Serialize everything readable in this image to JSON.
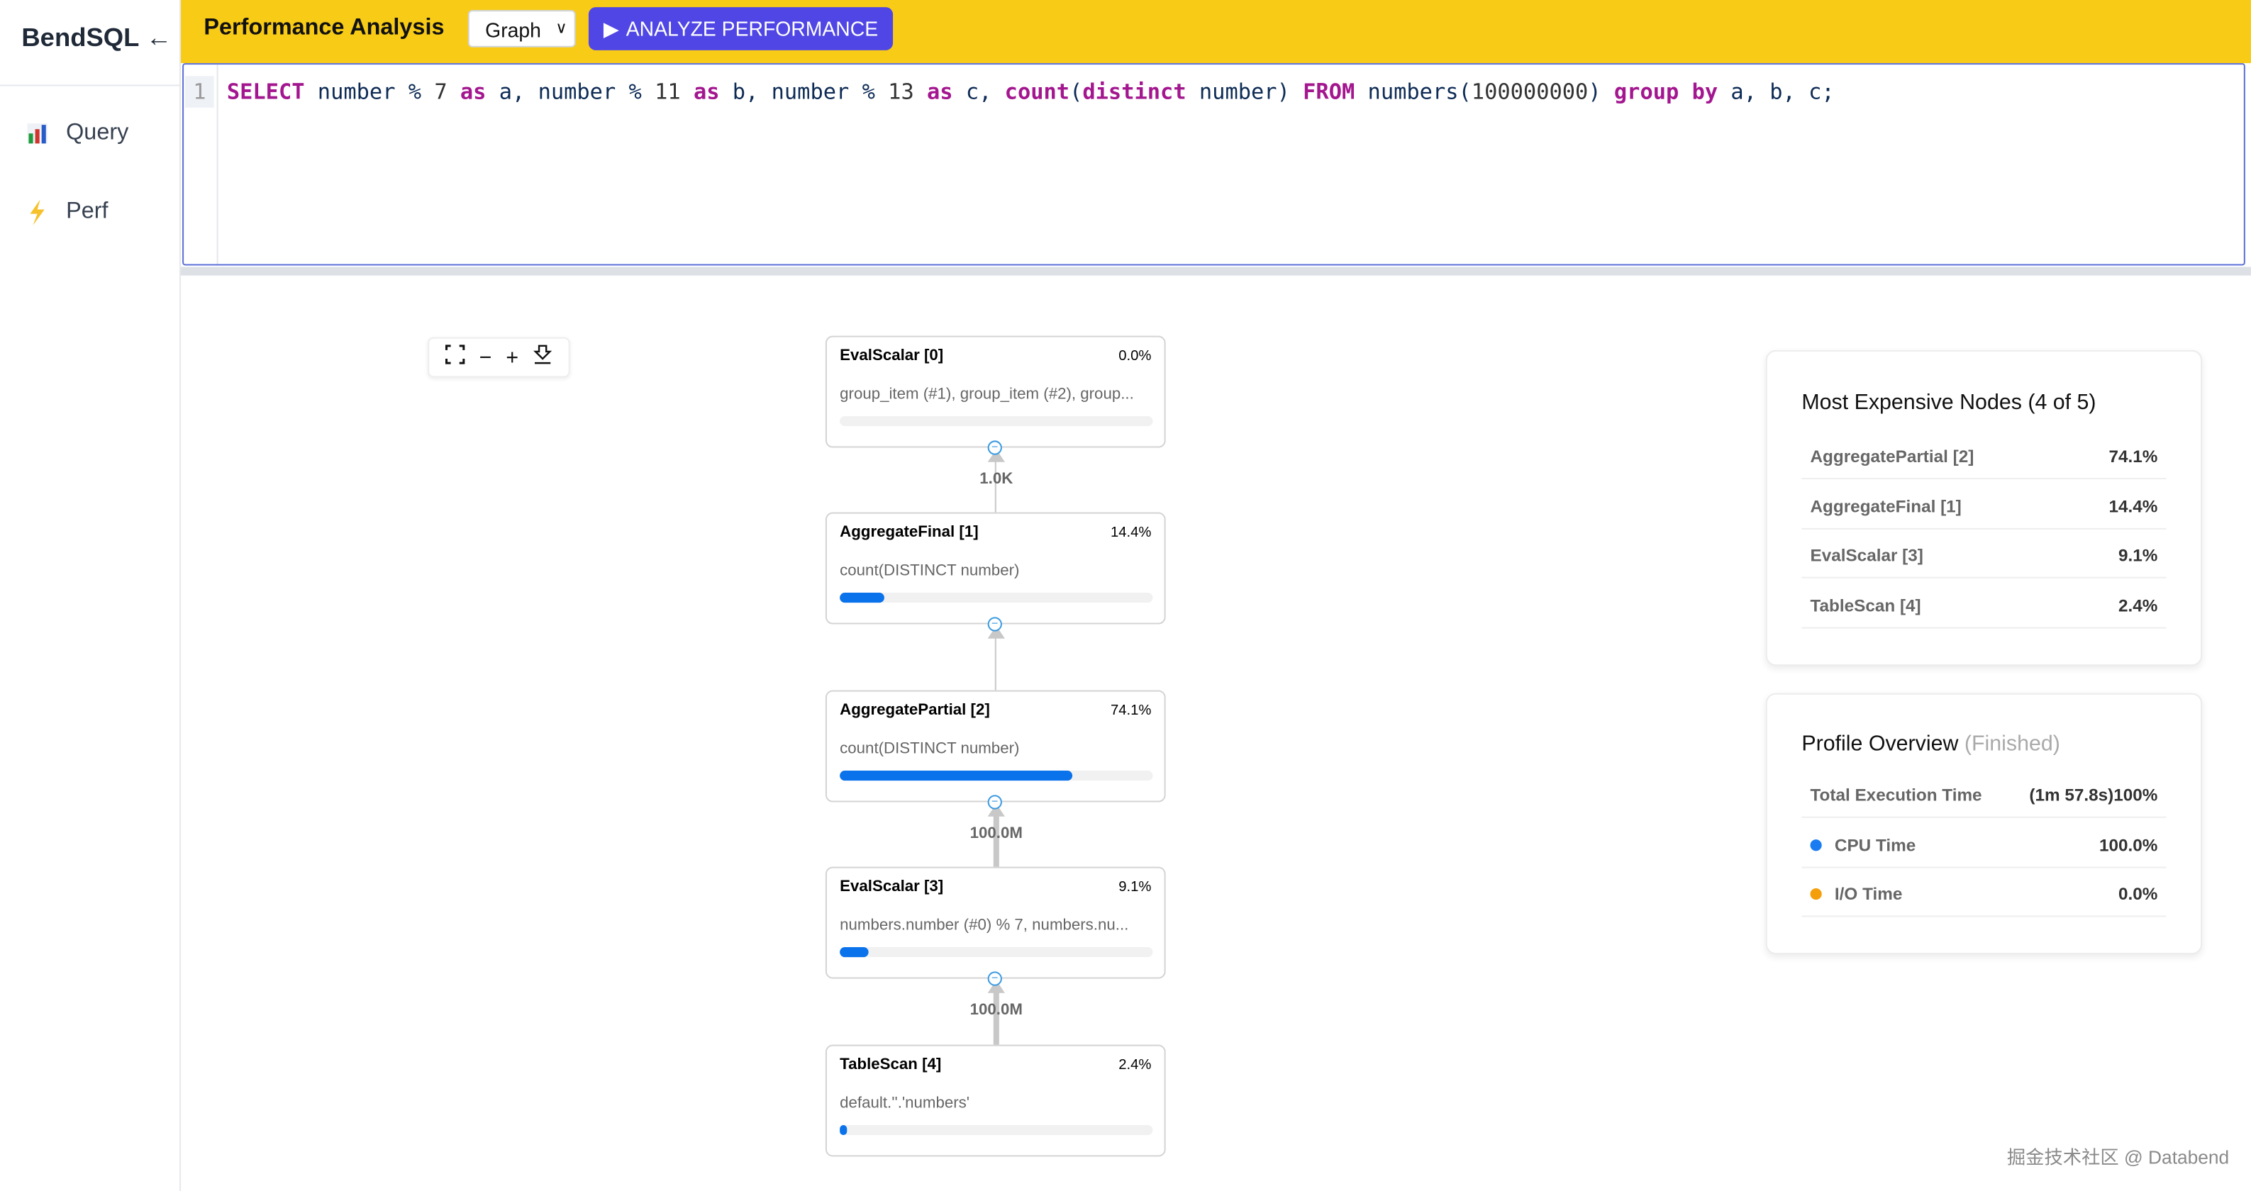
{
  "sidebar": {
    "brand": "BendSQL",
    "back_icon": "arrow-left-icon",
    "items": [
      {
        "label": "Query",
        "icon": "bar-chart-icon"
      },
      {
        "label": "Perf",
        "icon": "lightning-icon"
      }
    ]
  },
  "header": {
    "title": "Performance Analysis",
    "view_select": "Graph",
    "analyze_label": "ANALYZE PERFORMANCE",
    "accent": "#f8cb17",
    "button_color": "#4f46e5"
  },
  "editor": {
    "line_number": "1",
    "tokens": [
      {
        "t": "SELECT",
        "k": "kw"
      },
      {
        "t": " number % ",
        "k": ""
      },
      {
        "t": "7",
        "k": "num"
      },
      {
        "t": " ",
        "k": ""
      },
      {
        "t": "as",
        "k": "kw"
      },
      {
        "t": " a, number % ",
        "k": ""
      },
      {
        "t": "11",
        "k": "num"
      },
      {
        "t": " ",
        "k": ""
      },
      {
        "t": "as",
        "k": "kw"
      },
      {
        "t": " b, number % ",
        "k": ""
      },
      {
        "t": "13",
        "k": "num"
      },
      {
        "t": " ",
        "k": ""
      },
      {
        "t": "as",
        "k": "kw"
      },
      {
        "t": " c, ",
        "k": ""
      },
      {
        "t": "count",
        "k": "kw"
      },
      {
        "t": "(",
        "k": ""
      },
      {
        "t": "distinct",
        "k": "kw"
      },
      {
        "t": " number) ",
        "k": ""
      },
      {
        "t": "FROM",
        "k": "kw"
      },
      {
        "t": " numbers(",
        "k": ""
      },
      {
        "t": "100000000",
        "k": "num"
      },
      {
        "t": ") ",
        "k": ""
      },
      {
        "t": "group by",
        "k": "kw"
      },
      {
        "t": " a, b, c;",
        "k": ""
      }
    ]
  },
  "graph_toolbar": [
    "fullscreen-icon",
    "zoom-out-icon",
    "zoom-in-icon",
    "download-icon"
  ],
  "nodes": [
    {
      "title": "EvalScalar [0]",
      "pct": "0.0%",
      "desc": "group_item (#1), group_item (#2), group...",
      "fill": 0.0
    },
    {
      "title": "AggregateFinal [1]",
      "pct": "14.4%",
      "desc": "count(DISTINCT number)",
      "fill": 14.4
    },
    {
      "title": "AggregatePartial [2]",
      "pct": "74.1%",
      "desc": "count(DISTINCT number)",
      "fill": 74.1
    },
    {
      "title": "EvalScalar [3]",
      "pct": "9.1%",
      "desc": "numbers.number (#0) % 7, numbers.nu...",
      "fill": 9.1
    },
    {
      "title": "TableScan [4]",
      "pct": "2.4%",
      "desc": "default.''.'numbers'",
      "fill": 2.4
    }
  ],
  "edges": [
    {
      "label": "1.0K"
    },
    {
      "label": ""
    },
    {
      "label": "100.0M"
    },
    {
      "label": "100.0M"
    }
  ],
  "expensive": {
    "title": "Most Expensive Nodes (4 of 5)",
    "rows": [
      {
        "label": "AggregatePartial [2]",
        "value": "74.1%"
      },
      {
        "label": "AggregateFinal [1]",
        "value": "14.4%"
      },
      {
        "label": "EvalScalar [3]",
        "value": "9.1%"
      },
      {
        "label": "TableScan [4]",
        "value": "2.4%"
      }
    ]
  },
  "overview": {
    "title": "Profile Overview",
    "status": "(Finished)",
    "rows": [
      {
        "label": "Total Execution Time",
        "value": "(1m 57.8s)100%"
      },
      {
        "label": "CPU Time",
        "value": "100.0%",
        "color": "#1a7cf0"
      },
      {
        "label": "I/O Time",
        "value": "0.0%",
        "color": "#f59e0b"
      }
    ]
  },
  "watermark": "掘金技术社区 @ Databend"
}
